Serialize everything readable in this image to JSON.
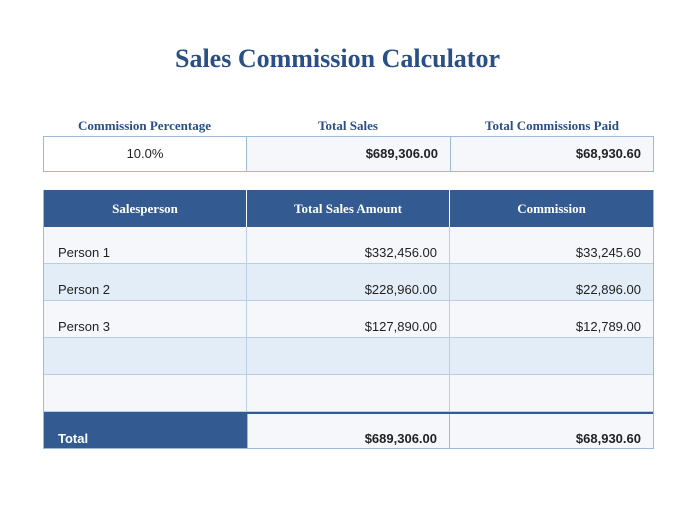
{
  "title": "Sales Commission Calculator",
  "summary": {
    "headers": {
      "commission_percentage": "Commission Percentage",
      "total_sales": "Total Sales",
      "total_commissions_paid": "Total Commissions Paid"
    },
    "values": {
      "commission_percentage": "10.0%",
      "total_sales": "$689,306.00",
      "total_commissions_paid": "$68,930.60"
    }
  },
  "table": {
    "headers": {
      "salesperson": "Salesperson",
      "total_sales_amount": "Total Sales Amount",
      "commission": "Commission"
    },
    "rows": [
      {
        "salesperson": "Person 1",
        "total_sales_amount": "$332,456.00",
        "commission": "$33,245.60"
      },
      {
        "salesperson": "Person 2",
        "total_sales_amount": "$228,960.00",
        "commission": "$22,896.00"
      },
      {
        "salesperson": "Person 3",
        "total_sales_amount": "$127,890.00",
        "commission": "$12,789.00"
      },
      {
        "salesperson": "",
        "total_sales_amount": "",
        "commission": ""
      },
      {
        "salesperson": "",
        "total_sales_amount": "",
        "commission": ""
      }
    ],
    "total": {
      "label": "Total",
      "total_sales_amount": "$689,306.00",
      "commission": "$68,930.60"
    }
  },
  "colors": {
    "title": "#2a4f86",
    "header_bg": "#335a91",
    "row_alt": "#e3edf8",
    "border": "#9bbbdc"
  }
}
